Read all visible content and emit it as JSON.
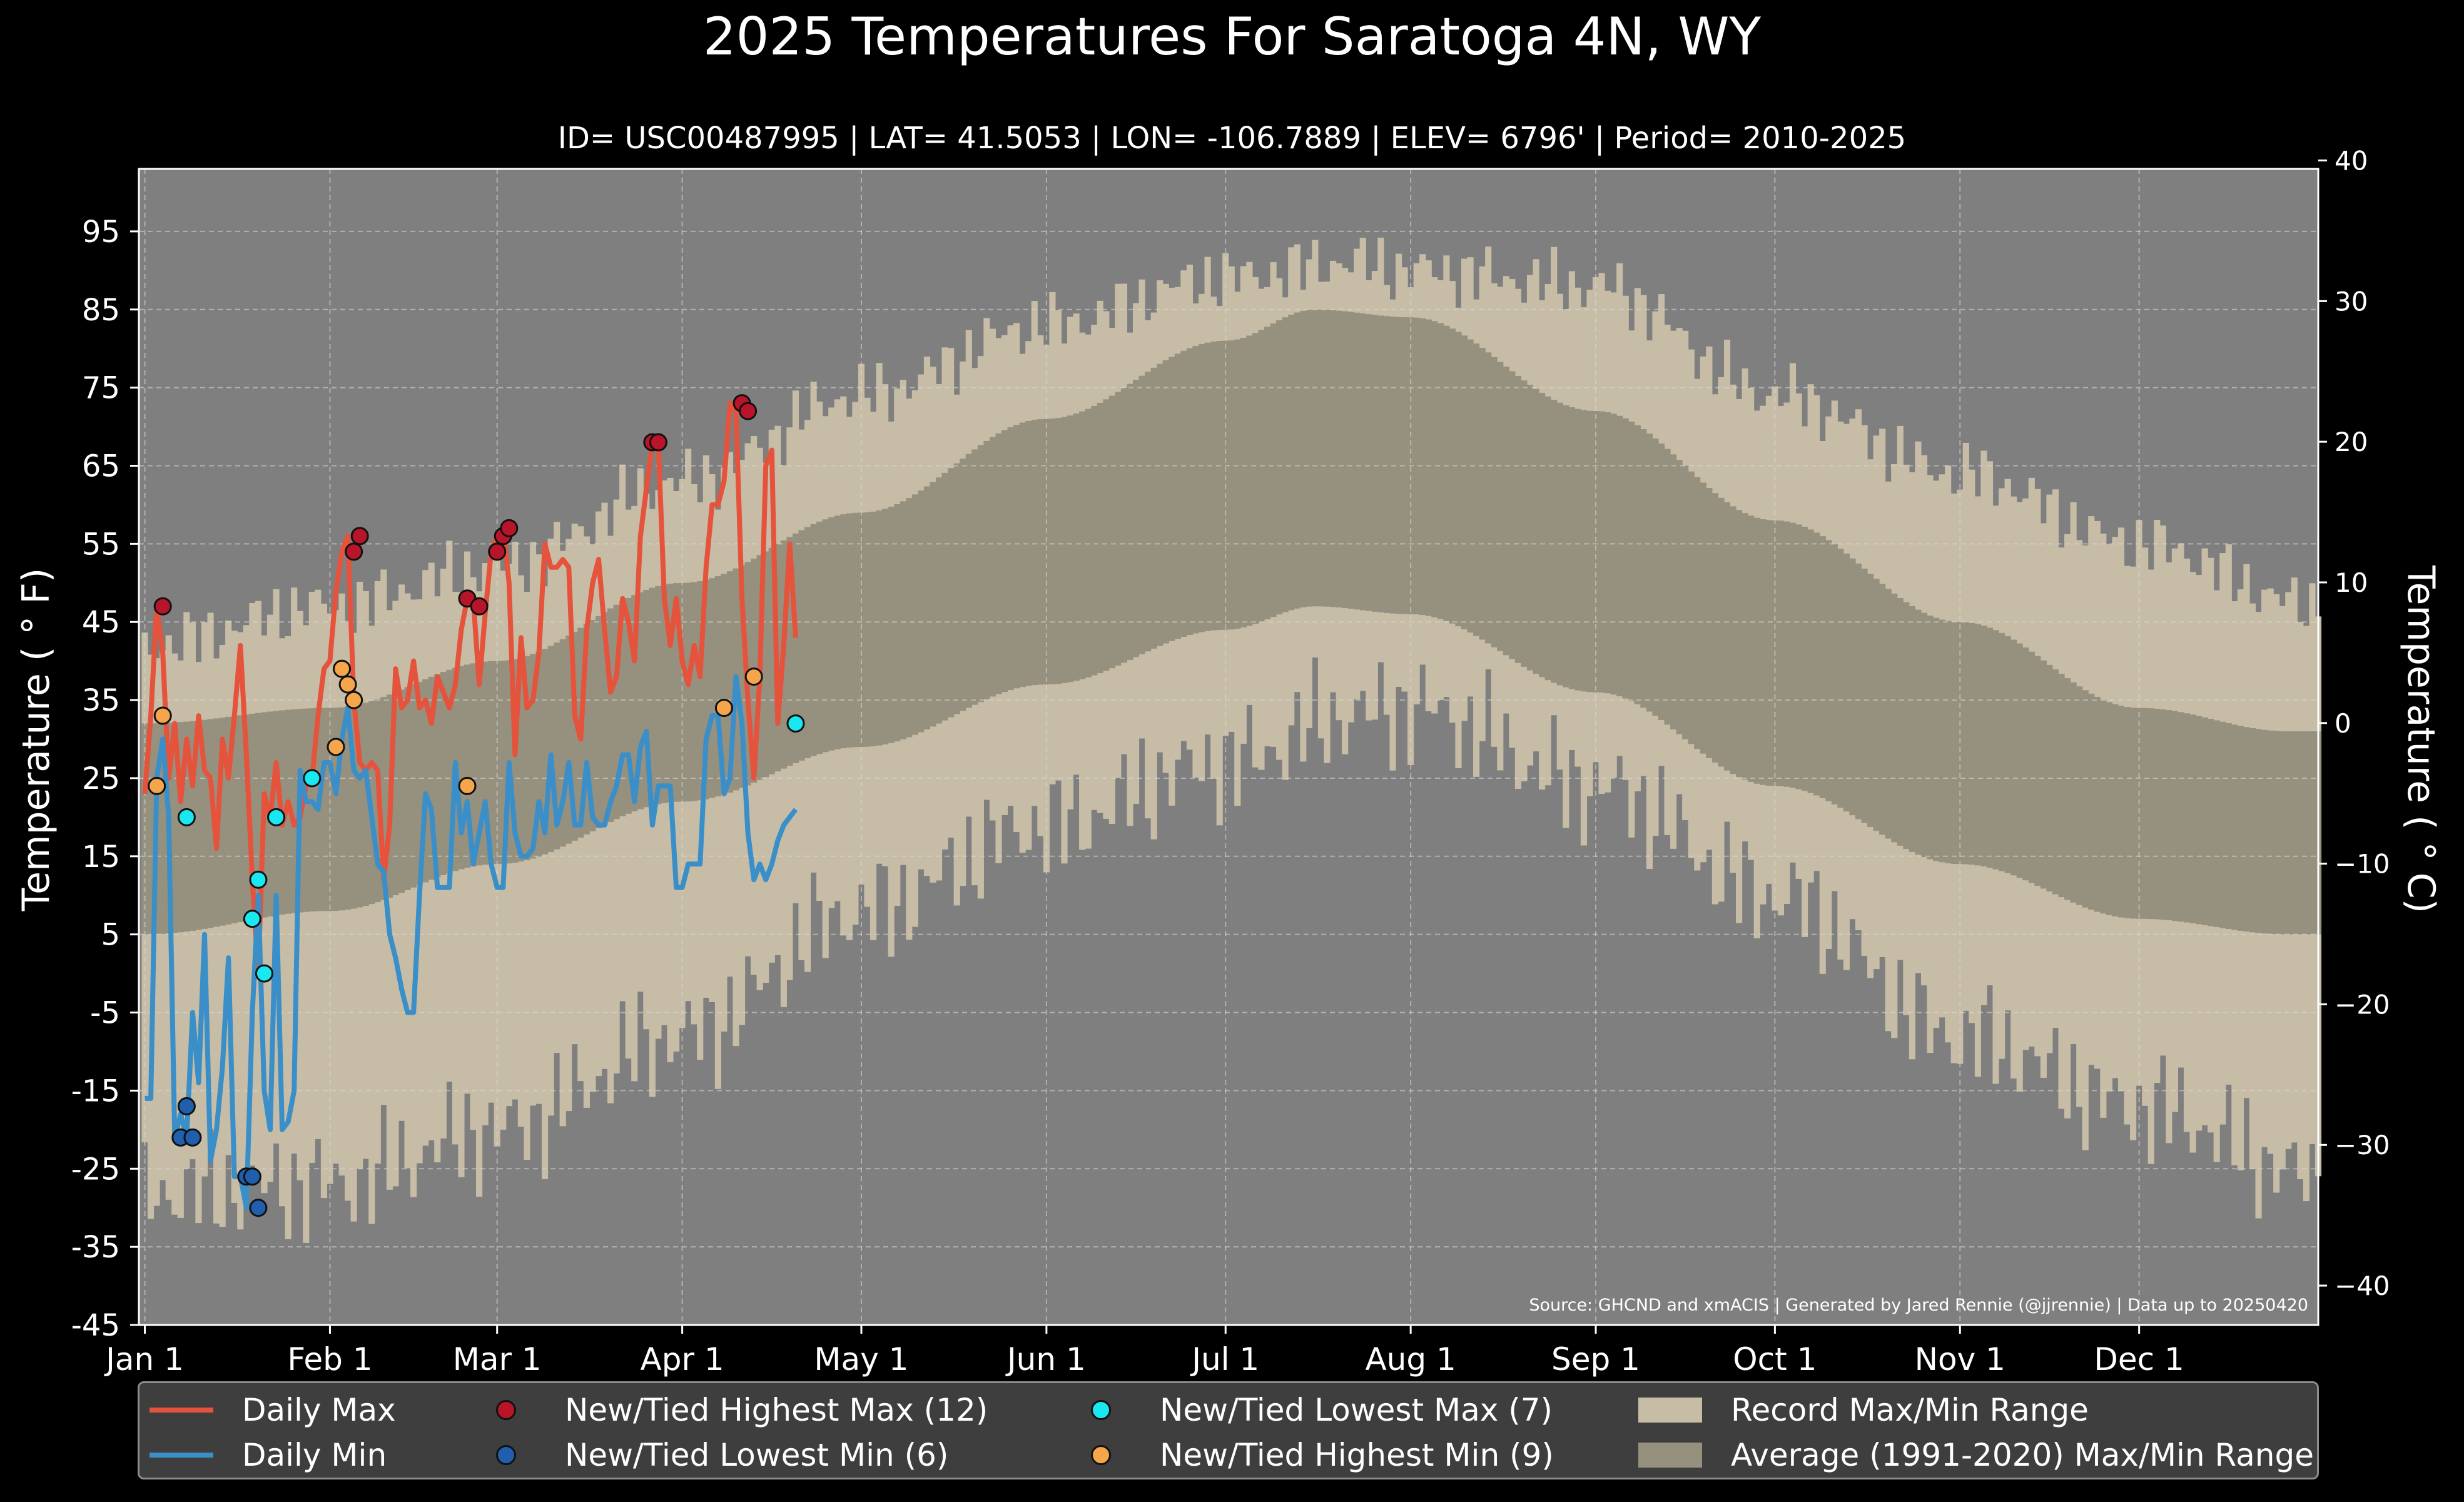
{
  "chart_data": {
    "type": "area",
    "title": "2025 Temperatures For Saratoga 4N, WY",
    "subtitle": "ID= USC00487995 | LAT= 41.5053 | LON= -106.7889 | ELEV= 6796' | Period= 2010-2025",
    "ylabel": "Temperature ($^\\circ$F)",
    "ylabel_display": "Temperature ( ° F)",
    "ylabel_right": "Temperature ( ° C)",
    "ylim": [
      -45,
      103
    ],
    "yticks": [
      -45,
      -35,
      -25,
      -15,
      -5,
      5,
      15,
      25,
      35,
      45,
      55,
      65,
      75,
      85,
      95
    ],
    "ylim_right": [
      -42.8,
      39.4
    ],
    "yticks_right": [
      -40,
      -30,
      -20,
      -10,
      0,
      10,
      20,
      30,
      40
    ],
    "xlim_days": [
      0,
      365
    ],
    "xticks": [
      {
        "label": "Jan 1",
        "day": 1
      },
      {
        "label": "Feb 1",
        "day": 32
      },
      {
        "label": "Mar 1",
        "day": 60
      },
      {
        "label": "Apr 1",
        "day": 91
      },
      {
        "label": "May 1",
        "day": 121
      },
      {
        "label": "Jun 1",
        "day": 152
      },
      {
        "label": "Jul 1",
        "day": 182
      },
      {
        "label": "Aug 1",
        "day": 213
      },
      {
        "label": "Sep 1",
        "day": 244
      },
      {
        "label": "Oct 1",
        "day": 274
      },
      {
        "label": "Nov 1",
        "day": 305
      },
      {
        "label": "Dec 1",
        "day": 335
      }
    ],
    "grid": true,
    "legend_position": "bottom",
    "source_note": "Source: GHCND and xmACIS | Generated by Jared Rennie (@jjrennie) | Data up to 20250420",
    "legend": {
      "daily_max": "Daily Max",
      "daily_min": "Daily Min",
      "new_high_max": "New/Tied Highest Max (12)",
      "new_low_min": "New/Tied Lowest Min (6)",
      "new_low_max": "New/Tied Lowest Max (7)",
      "new_high_min": "New/Tied Highest Min (9)",
      "record_range": "Record Max/Min Range",
      "average_range": "Average (1991-2020) Max/Min Range"
    },
    "record_max_profile": {
      "x": [
        1,
        32,
        60,
        91,
        121,
        152,
        182,
        203,
        213,
        244,
        274,
        305,
        335,
        365
      ],
      "y": [
        42,
        47,
        52,
        63,
        74,
        83,
        89,
        91,
        90,
        88,
        74,
        64,
        55,
        47
      ]
    },
    "record_min_profile": {
      "x": [
        1,
        32,
        60,
        91,
        121,
        152,
        182,
        203,
        213,
        244,
        274,
        305,
        335,
        365
      ],
      "y": [
        -28,
        -27,
        -20,
        -8,
        8,
        19,
        27,
        33,
        34,
        24,
        10,
        -8,
        -17,
        -26
      ]
    },
    "average_max": {
      "x": [
        1,
        32,
        60,
        91,
        121,
        152,
        182,
        197,
        213,
        244,
        274,
        305,
        335,
        360
      ],
      "y": [
        32,
        34,
        40,
        50,
        59,
        71,
        81,
        85,
        84,
        72,
        58,
        45,
        34,
        31
      ]
    },
    "average_min": {
      "x": [
        1,
        32,
        60,
        91,
        121,
        152,
        182,
        197,
        213,
        244,
        274,
        305,
        335,
        360
      ],
      "y": [
        5,
        8,
        14,
        22,
        29,
        37,
        44,
        47,
        46,
        36,
        24,
        14,
        7,
        5
      ]
    },
    "series": [
      {
        "name": "Daily Max",
        "color": "#e5533c",
        "x": [
          1,
          2,
          3,
          4,
          5,
          6,
          7,
          8,
          9,
          10,
          11,
          12,
          13,
          14,
          15,
          16,
          17,
          18,
          19,
          20,
          21,
          22,
          23,
          24,
          25,
          26,
          27,
          28,
          29,
          30,
          31,
          32,
          33,
          34,
          35,
          36,
          37,
          38,
          39,
          40,
          41,
          42,
          43,
          44,
          45,
          46,
          47,
          48,
          49,
          50,
          51,
          52,
          53,
          54,
          55,
          56,
          57,
          58,
          59,
          60,
          61,
          62,
          63,
          64,
          65,
          66,
          67,
          68,
          69,
          70,
          71,
          72,
          73,
          74,
          75,
          76,
          77,
          78,
          79,
          80,
          81,
          82,
          83,
          84,
          85,
          86,
          87,
          88,
          89,
          90,
          91,
          92,
          93,
          94,
          95,
          96,
          97,
          98,
          99,
          100,
          101,
          102,
          103,
          104,
          105,
          106,
          107,
          108,
          109,
          110
        ],
        "y": [
          23,
          33,
          47,
          41,
          25,
          32,
          22,
          30,
          24,
          33,
          26,
          25,
          16,
          30,
          25,
          33,
          42,
          28,
          12,
          0,
          23,
          20,
          27,
          19,
          22,
          19,
          20,
          24,
          25,
          33,
          39,
          40,
          49,
          54,
          56,
          35,
          27,
          26,
          27,
          26,
          12,
          19,
          39,
          34,
          35,
          40,
          34,
          35,
          32,
          38,
          36,
          34,
          37,
          44,
          48,
          48,
          37,
          46,
          54,
          56,
          57,
          50,
          28,
          43,
          34,
          35,
          41,
          55,
          52,
          52,
          53,
          52,
          33,
          30,
          44,
          50,
          53,
          44,
          36,
          38,
          48,
          45,
          40,
          56,
          62,
          68,
          68,
          48,
          42,
          48,
          40,
          37,
          42,
          38,
          52,
          60,
          60,
          63,
          73,
          72,
          48,
          35,
          25,
          38,
          65,
          67,
          32,
          42,
          55,
          43
        ]
      },
      {
        "name": "Daily Min",
        "color": "#3b8fc8",
        "x": [
          1,
          2,
          3,
          4,
          5,
          6,
          7,
          8,
          9,
          10,
          11,
          12,
          13,
          14,
          15,
          16,
          17,
          18,
          19,
          20,
          21,
          22,
          23,
          24,
          25,
          26,
          27,
          28,
          29,
          30,
          31,
          32,
          33,
          34,
          35,
          36,
          37,
          38,
          39,
          40,
          41,
          42,
          43,
          44,
          45,
          46,
          47,
          48,
          49,
          50,
          51,
          52,
          53,
          54,
          55,
          56,
          57,
          58,
          59,
          60,
          61,
          62,
          63,
          64,
          65,
          66,
          67,
          68,
          69,
          70,
          71,
          72,
          73,
          74,
          75,
          76,
          77,
          78,
          79,
          80,
          81,
          82,
          83,
          84,
          85,
          86,
          87,
          88,
          89,
          90,
          91,
          92,
          93,
          94,
          95,
          96,
          97,
          98,
          99,
          100,
          101,
          102,
          103,
          104,
          105,
          106,
          107,
          108,
          109,
          110
        ],
        "y": [
          -16,
          -16,
          25,
          30,
          20,
          -21,
          -18,
          -21,
          -5,
          -14,
          5,
          -24,
          -20,
          -12,
          2,
          -26,
          -26,
          -30,
          -5,
          10,
          -15,
          -20,
          10,
          -20,
          -19,
          -15,
          26,
          22,
          22,
          21,
          27,
          27,
          23,
          30,
          34,
          26,
          25,
          26,
          20,
          14,
          13,
          5,
          2,
          -2,
          -5,
          -5,
          10,
          23,
          21,
          11,
          11,
          11,
          27,
          18,
          22,
          14,
          18,
          22,
          14,
          11,
          11,
          27,
          18,
          15,
          15,
          16,
          22,
          18,
          28,
          19,
          22,
          27,
          19,
          19,
          27,
          20,
          19,
          19,
          22,
          24,
          28,
          28,
          22,
          29,
          31,
          19,
          24,
          24,
          24,
          11,
          11,
          14,
          14,
          14,
          30,
          33,
          33,
          23,
          25,
          38,
          32,
          18,
          12,
          14,
          12,
          14,
          17,
          19,
          20,
          21
        ]
      },
      {
        "name": "New/Tied Highest Max (12)",
        "color": "#b8142a",
        "x": [
          4,
          36,
          37,
          55,
          57,
          60,
          61,
          62,
          86,
          87,
          101,
          102
        ],
        "y": [
          47,
          54,
          56,
          48,
          47,
          54,
          56,
          57,
          68,
          68,
          73,
          72
        ]
      },
      {
        "name": "New/Tied Lowest Min (6)",
        "color": "#1f5fae",
        "x": [
          7,
          8,
          9,
          18,
          19,
          20
        ],
        "y": [
          -21,
          -17,
          -21,
          -26,
          -26,
          -30
        ]
      },
      {
        "name": "New/Tied Lowest Max (7)",
        "color": "#19e8f0",
        "x": [
          8,
          19,
          20,
          21,
          23,
          29,
          110
        ],
        "y": [
          20,
          7,
          12,
          0,
          20,
          25,
          32
        ]
      },
      {
        "name": "New/Tied Highest Min (9)",
        "color": "#f5a54a",
        "x": [
          3,
          4,
          33,
          34,
          35,
          36,
          55,
          98,
          103
        ],
        "y": [
          24,
          33,
          29,
          39,
          37,
          35,
          24,
          34,
          38
        ]
      }
    ]
  },
  "colors": {
    "plot_background": "#7f7f7f",
    "record_range": "#c7bda6",
    "average_range": "#96907f",
    "daily_max": "#e5533c",
    "daily_min": "#3b8fc8",
    "legend_background": "#3e3e3e"
  }
}
